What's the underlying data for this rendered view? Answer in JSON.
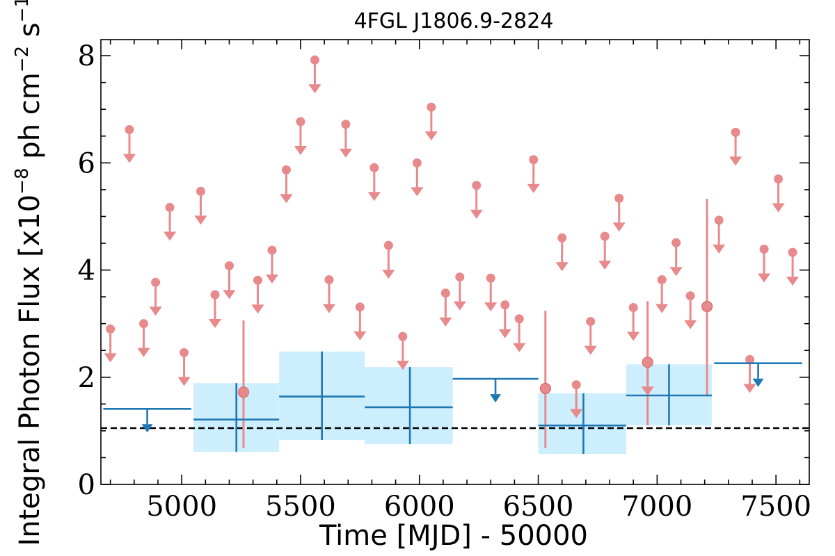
{
  "chart_data": {
    "type": "scatter",
    "title": "4FGL J1806.9-2824",
    "xlabel": "Time [MJD] - 50000",
    "ylabel": {
      "prefix": "Integral Photon Flux [x10",
      "exp1": "−8",
      "mid": " ph cm",
      "exp2": "−2",
      "mid2": " s",
      "exp3": "−1",
      "suffix": "]"
    },
    "xlim": [
      4660,
      7640
    ],
    "ylim": [
      0,
      8.3
    ],
    "x_ticks": [
      5000,
      5500,
      6000,
      6500,
      7000,
      7500
    ],
    "y_ticks": [
      0,
      2,
      4,
      6,
      8
    ],
    "mean_flux": 1.05,
    "colors": {
      "short_bins": "#e8898c",
      "long_bins": "#1f77b4",
      "long_band": "#cdeefc",
      "mean_line": "#000000"
    },
    "short_bins_upper_limits": {
      "x": [
        4700,
        4780,
        4840,
        4890,
        4950,
        5010,
        5080,
        5140,
        5200,
        5320,
        5380,
        5440,
        5500,
        5560,
        5620,
        5690,
        5750,
        5810,
        5870,
        5930,
        5990,
        6050,
        6110,
        6170,
        6240,
        6300,
        6360,
        6420,
        6480,
        6600,
        6660,
        6720,
        6780,
        6840,
        6900,
        6960,
        7020,
        7080,
        7140,
        7260,
        7330,
        7390,
        7450,
        7510,
        7570
      ],
      "y": [
        2.9,
        6.62,
        3.0,
        3.77,
        5.17,
        2.46,
        5.47,
        3.54,
        4.08,
        3.81,
        4.37,
        5.87,
        6.77,
        7.92,
        3.82,
        6.72,
        3.31,
        5.91,
        4.46,
        2.76,
        6.0,
        7.04,
        3.57,
        3.87,
        5.58,
        3.85,
        3.35,
        3.09,
        6.06,
        4.6,
        1.86,
        3.04,
        4.63,
        5.34,
        3.3,
        2.28,
        3.82,
        4.51,
        3.52,
        4.93,
        6.57,
        2.33,
        4.39,
        5.7,
        4.33
      ]
    },
    "short_bins_detections": [
      {
        "x": 5260,
        "y": 1.72,
        "ylo": 0.68,
        "yhi": 3.06
      },
      {
        "x": 6530,
        "y": 1.79,
        "ylo": 0.68,
        "yhi": 3.24
      },
      {
        "x": 6960,
        "y": 2.28,
        "ylo": 1.1,
        "yhi": 3.42
      },
      {
        "x": 7210,
        "y": 3.32,
        "ylo": 1.64,
        "yhi": 5.33
      }
    ],
    "long_bins_upper_limits": [
      {
        "x0": 4670,
        "x1": 5040,
        "y": 1.41
      },
      {
        "x0": 6140,
        "x1": 6500,
        "y": 1.97
      },
      {
        "x0": 7240,
        "x1": 7610,
        "y": 2.26
      }
    ],
    "long_bins_detections": [
      {
        "x0": 5050,
        "x1": 5410,
        "xc": 5230,
        "y": 1.21,
        "ylo": 0.61,
        "yhi": 1.89
      },
      {
        "x0": 5410,
        "x1": 5770,
        "xc": 5590,
        "y": 1.64,
        "ylo": 0.83,
        "yhi": 2.48
      },
      {
        "x0": 5770,
        "x1": 6140,
        "xc": 5960,
        "y": 1.44,
        "ylo": 0.75,
        "yhi": 2.19
      },
      {
        "x0": 6500,
        "x1": 6870,
        "xc": 6690,
        "y": 1.1,
        "ylo": 0.57,
        "yhi": 1.7
      },
      {
        "x0": 6870,
        "x1": 7230,
        "xc": 7050,
        "y": 1.66,
        "ylo": 1.1,
        "yhi": 2.24
      }
    ]
  }
}
